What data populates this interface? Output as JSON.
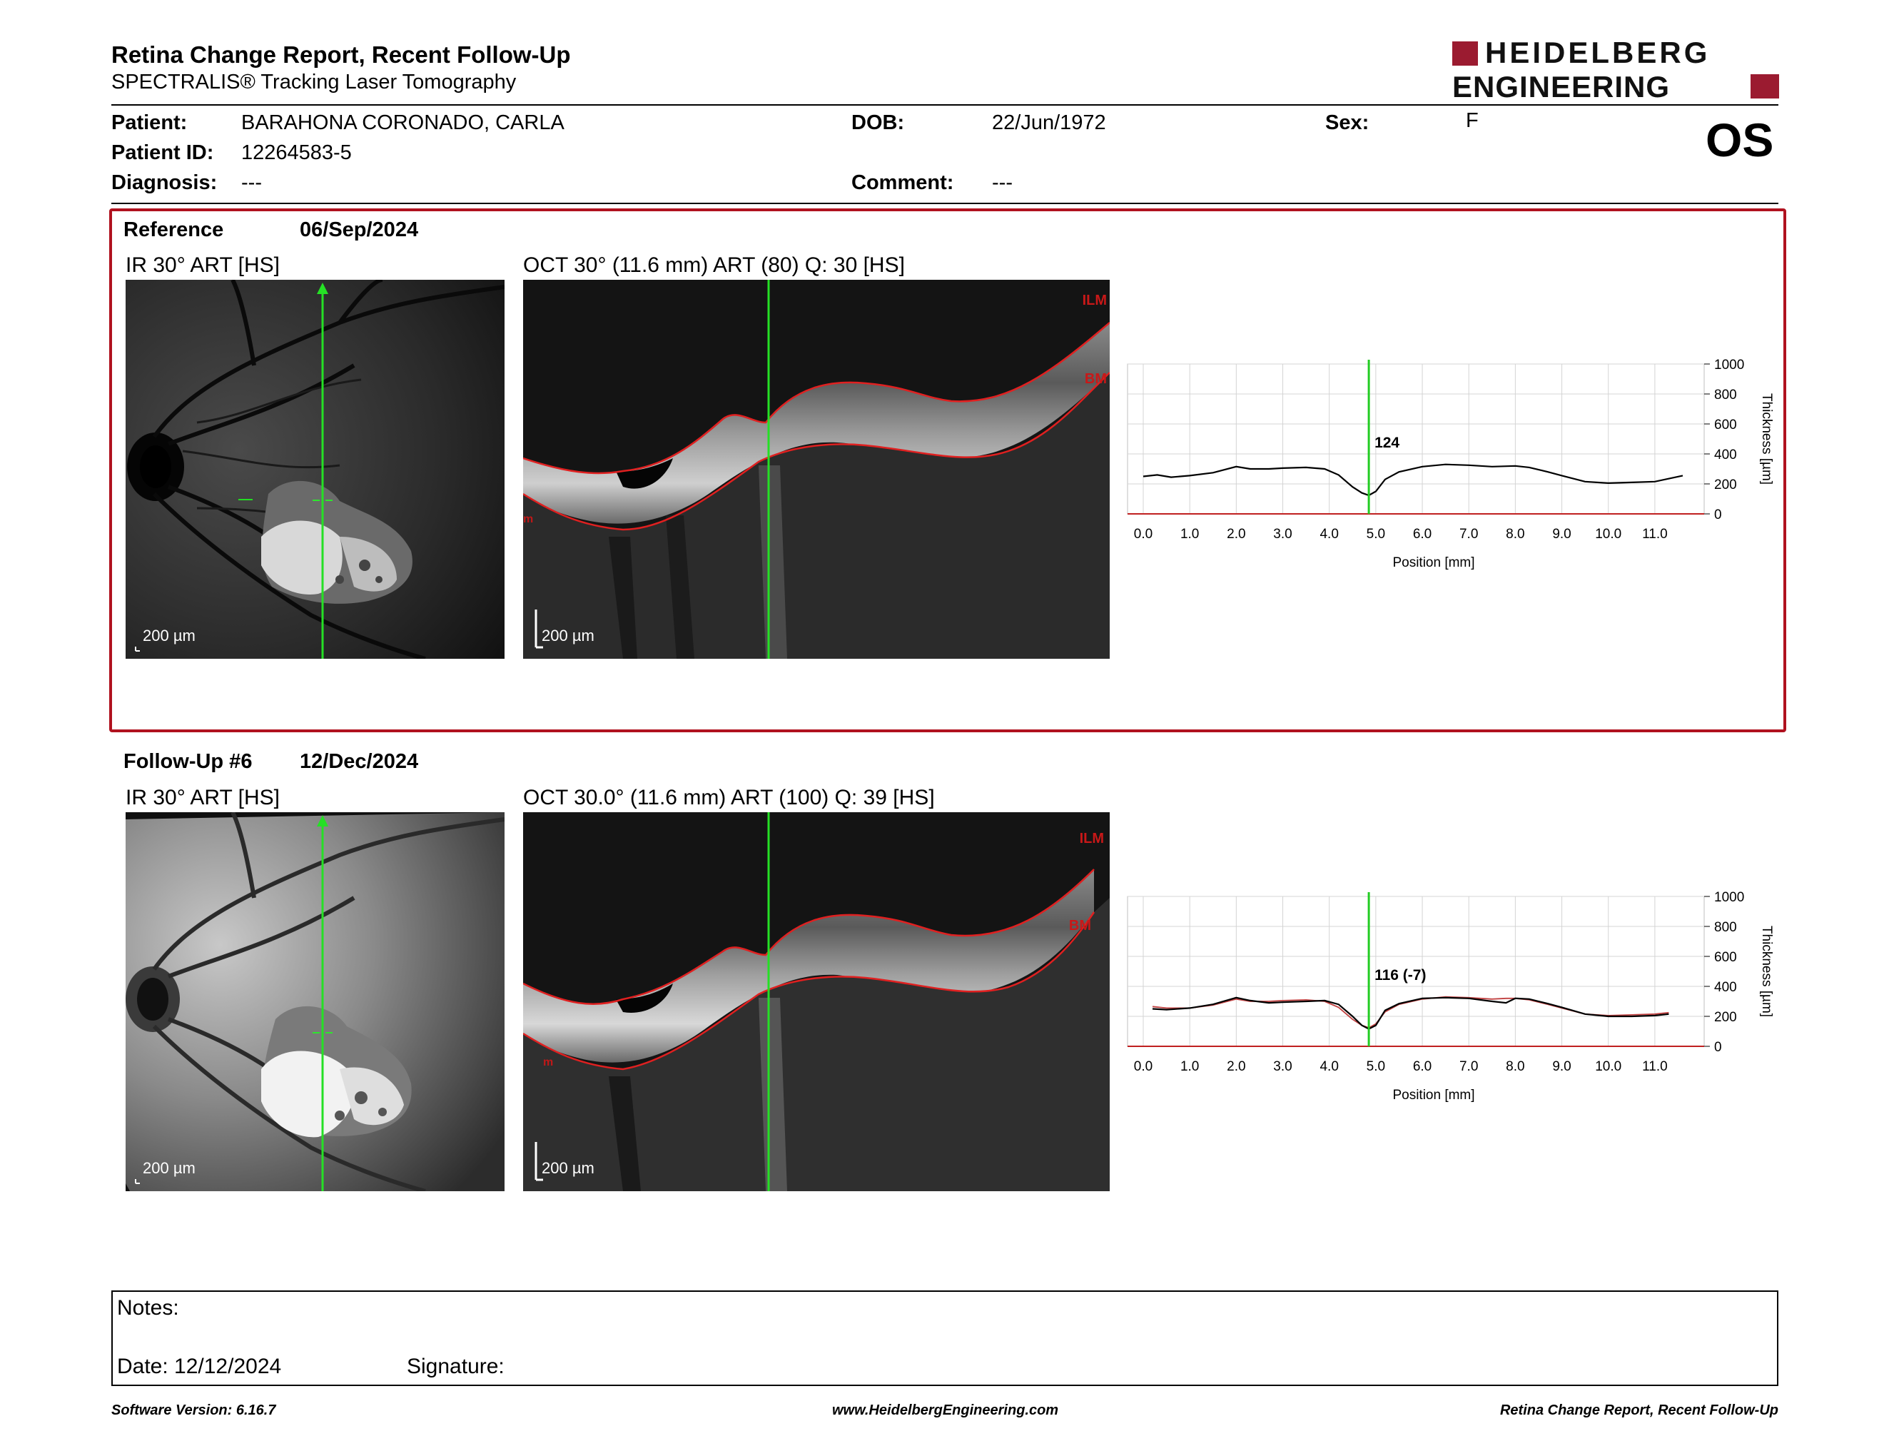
{
  "header": {
    "title": "Retina Change Report, Recent Follow-Up",
    "subtitle": "SPECTRALIS® Tracking Laser Tomography",
    "logo_line1": "HEIDELBERG",
    "logo_line2": "ENGINEERING",
    "eye": "OS"
  },
  "patient": {
    "patient_label": "Patient:",
    "patient_value": "BARAHONA CORONADO, CARLA",
    "id_label": "Patient ID:",
    "id_value": "12264583-5",
    "diagnosis_label": "Diagnosis:",
    "diagnosis_value": "---",
    "dob_label": "DOB:",
    "dob_value": "22/Jun/1972",
    "comment_label": "Comment:",
    "comment_value": "---",
    "sex_label": "Sex:",
    "sex_value": "F"
  },
  "reference": {
    "label": "Reference",
    "date": "06/Sep/2024",
    "ir_title": "IR 30° ART [HS]",
    "oct_title": "OCT 30° (11.6 mm) ART (80) Q: 30 [HS]",
    "ir_scale": "200 µm",
    "oct_scale": "200 µm",
    "ilm": "ILM",
    "bm": "BM"
  },
  "followup": {
    "label": "Follow-Up #6",
    "date": "12/Dec/2024",
    "ir_title": "IR 30° ART [HS]",
    "oct_title": "OCT 30.0° (11.6 mm) ART (100) Q: 39 [HS]",
    "ir_scale": "200 µm",
    "oct_scale": "200 µm",
    "ilm": "ILM",
    "bm": "BM"
  },
  "notes": {
    "notes_label": "Notes:",
    "date_label": "Date: 12/12/2024",
    "signature_label": "Signature:"
  },
  "footer": {
    "left": "Software Version: 6.16.7",
    "center": "www.HeidelbergEngineering.com",
    "right": "Retina Change Report, Recent Follow-Up"
  },
  "chart_data": [
    {
      "type": "line",
      "xlabel": "Position [mm]",
      "ylabel": "Thickness [µm]",
      "xlim": [
        0,
        11.6
      ],
      "ylim": [
        0,
        1000
      ],
      "x_ticks": [
        "0.0",
        "1.0",
        "2.0",
        "3.0",
        "4.0",
        "5.0",
        "6.0",
        "7.0",
        "8.0",
        "9.0",
        "10.0",
        "11.0"
      ],
      "y_ticks": [
        "0",
        "200",
        "400",
        "600",
        "800",
        "1000"
      ],
      "grid": true,
      "cursor_x": 4.85,
      "cursor_label": "124",
      "series": [
        {
          "x": [
            0,
            0.3,
            0.6,
            1.0,
            1.5,
            2.0,
            2.3,
            2.7,
            3.0,
            3.5,
            3.9,
            4.2,
            4.5,
            4.7,
            4.85,
            5.0,
            5.2,
            5.5,
            6.0,
            6.5,
            7.0,
            7.5,
            8.0,
            8.3,
            8.7,
            9.0,
            9.5,
            10.0,
            10.5,
            11.0,
            11.6
          ],
          "y": [
            250,
            260,
            245,
            255,
            275,
            315,
            300,
            300,
            305,
            310,
            300,
            260,
            180,
            140,
            124,
            150,
            230,
            280,
            315,
            330,
            325,
            315,
            320,
            310,
            280,
            255,
            215,
            205,
            210,
            215,
            255
          ]
        }
      ]
    },
    {
      "type": "line",
      "xlabel": "Position [mm]",
      "ylabel": "Thickness [µm]",
      "xlim": [
        0,
        11.6
      ],
      "ylim": [
        0,
        1000
      ],
      "x_ticks": [
        "0.0",
        "1.0",
        "2.0",
        "3.0",
        "4.0",
        "5.0",
        "6.0",
        "7.0",
        "8.0",
        "9.0",
        "10.0",
        "11.0"
      ],
      "y_ticks": [
        "0",
        "200",
        "400",
        "600",
        "800",
        "1000"
      ],
      "grid": true,
      "cursor_x": 4.85,
      "cursor_label": "116 (-7)",
      "series": [
        {
          "x": [
            0.2,
            0.5,
            1.0,
            1.5,
            2.0,
            2.3,
            2.7,
            3.0,
            3.5,
            3.9,
            4.2,
            4.5,
            4.7,
            4.85,
            5.0,
            5.2,
            5.5,
            6.0,
            6.5,
            7.0,
            7.5,
            7.8,
            8.0,
            8.3,
            8.7,
            9.0,
            9.5,
            10.0,
            10.5,
            11.0,
            11.3
          ],
          "y": [
            250,
            245,
            255,
            280,
            325,
            305,
            290,
            295,
            300,
            305,
            280,
            200,
            140,
            116,
            140,
            240,
            285,
            320,
            325,
            320,
            300,
            290,
            320,
            315,
            285,
            260,
            215,
            200,
            200,
            205,
            215
          ]
        },
        {
          "x": [
            0.2,
            0.5,
            1.0,
            1.5,
            2.0,
            2.3,
            2.7,
            3.0,
            3.5,
            3.9,
            4.2,
            4.5,
            4.7,
            4.85,
            5.0,
            5.2,
            5.5,
            6.0,
            6.5,
            7.0,
            7.5,
            7.8,
            8.0,
            8.3,
            8.7,
            9.0,
            9.5,
            10.0,
            10.5,
            11.0,
            11.3
          ],
          "y": [
            265,
            255,
            255,
            275,
            315,
            300,
            300,
            305,
            310,
            300,
            260,
            180,
            140,
            124,
            150,
            230,
            280,
            315,
            330,
            325,
            315,
            320,
            320,
            310,
            280,
            255,
            215,
            205,
            210,
            215,
            225
          ]
        }
      ]
    }
  ]
}
